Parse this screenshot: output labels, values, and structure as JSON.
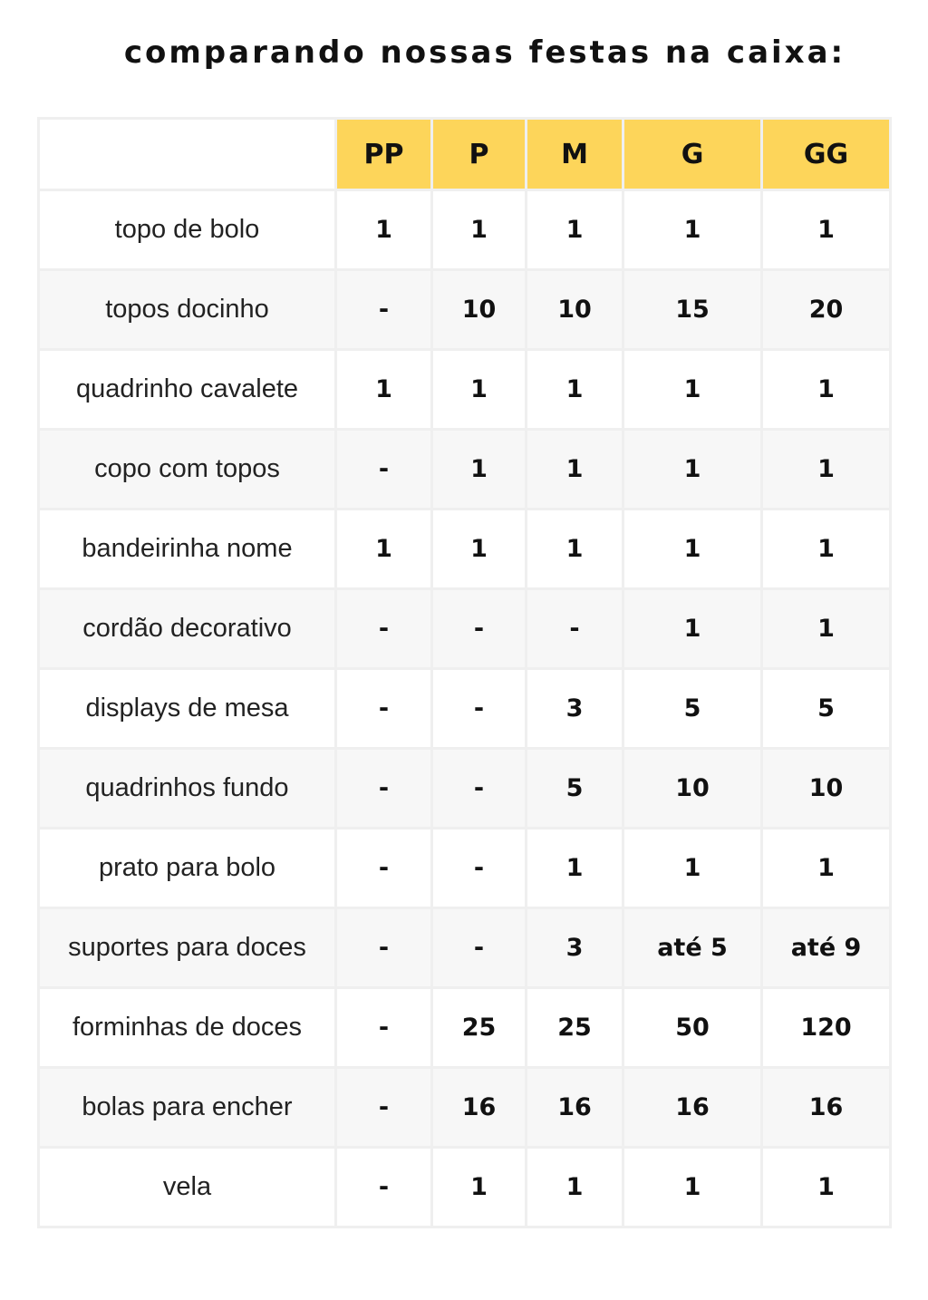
{
  "title": "comparando nossas festas na caixa:",
  "colors": {
    "header": "#fdd55a",
    "stripe": "#f7f7f7",
    "border": "#efefef"
  },
  "columns": [
    "PP",
    "P",
    "M",
    "G",
    "GG"
  ],
  "rows": [
    {
      "label": "topo de bolo",
      "values": [
        "1",
        "1",
        "1",
        "1",
        "1"
      ]
    },
    {
      "label": "topos docinho",
      "values": [
        "-",
        "10",
        "10",
        "15",
        "20"
      ]
    },
    {
      "label": "quadrinho cavalete",
      "values": [
        "1",
        "1",
        "1",
        "1",
        "1"
      ]
    },
    {
      "label": "copo com topos",
      "values": [
        "-",
        "1",
        "1",
        "1",
        "1"
      ]
    },
    {
      "label": "bandeirinha nome",
      "values": [
        "1",
        "1",
        "1",
        "1",
        "1"
      ]
    },
    {
      "label": "cordão decorativo",
      "values": [
        "-",
        "-",
        "-",
        "1",
        "1"
      ]
    },
    {
      "label": "displays de mesa",
      "values": [
        "-",
        "-",
        "3",
        "5",
        "5"
      ]
    },
    {
      "label": "quadrinhos fundo",
      "values": [
        "-",
        "-",
        "5",
        "10",
        "10"
      ]
    },
    {
      "label": "prato para bolo",
      "values": [
        "-",
        "-",
        "1",
        "1",
        "1"
      ]
    },
    {
      "label": "suportes para doces",
      "values": [
        "-",
        "-",
        "3",
        "até 5",
        "até 9"
      ]
    },
    {
      "label": "forminhas de doces",
      "values": [
        "-",
        "25",
        "25",
        "50",
        "120"
      ]
    },
    {
      "label": "bolas para encher",
      "values": [
        "-",
        "16",
        "16",
        "16",
        "16"
      ]
    },
    {
      "label": "vela",
      "values": [
        "-",
        "1",
        "1",
        "1",
        "1"
      ]
    }
  ]
}
